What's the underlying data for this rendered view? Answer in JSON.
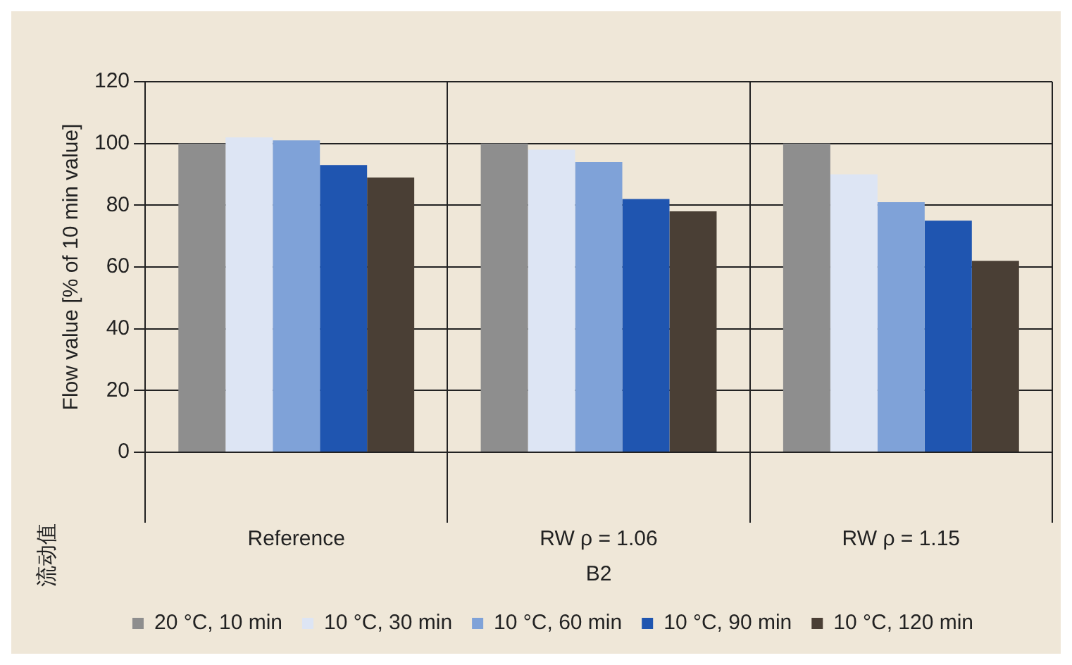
{
  "chart_data": {
    "type": "bar",
    "xlabel": "B2",
    "ylabel": "Flow value [% of 10 min value]",
    "annotations": [
      "流动值"
    ],
    "categories": [
      "Reference",
      "RW ρ = 1.06",
      "RW ρ = 1.15"
    ],
    "series": [
      {
        "name": "20 °C, 10 min",
        "color": "#8e8e8e",
        "values": [
          100,
          100,
          100
        ]
      },
      {
        "name": "10 °C, 30 min",
        "color": "#dde5f4",
        "values": [
          102,
          98,
          90
        ]
      },
      {
        "name": "10 °C, 60 min",
        "color": "#7fa2d8",
        "values": [
          101,
          94,
          81
        ]
      },
      {
        "name": "10 °C, 90 min",
        "color": "#1f55b0",
        "values": [
          93,
          82,
          75
        ]
      },
      {
        "name": "10 °C, 120 min",
        "color": "#4a3f35",
        "values": [
          89,
          78,
          62
        ]
      }
    ],
    "ylim": [
      0,
      120
    ],
    "yticks": [
      0,
      20,
      40,
      60,
      80,
      100,
      120
    ],
    "grid": true,
    "legend": "bottom"
  }
}
